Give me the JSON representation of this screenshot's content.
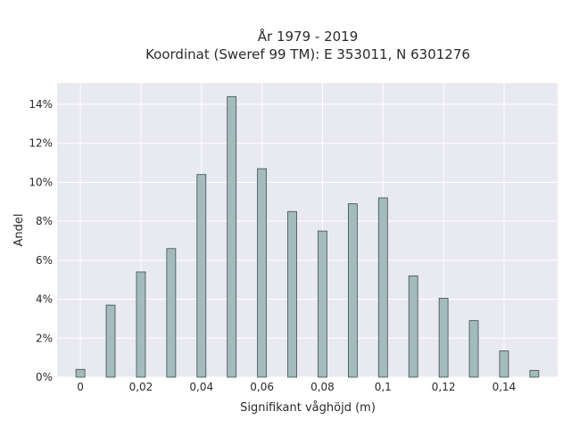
{
  "chart_data": {
    "type": "bar",
    "title": "År 1979 - 2019",
    "subtitle": "Koordinat (Sweref 99 TM): E 353011, N 6301276",
    "xlabel": "Signifikant våghöjd (m)",
    "ylabel": "Andel",
    "x": [
      0,
      0.01,
      0.02,
      0.03,
      0.04,
      0.05,
      0.06,
      0.07,
      0.08,
      0.09,
      0.1,
      0.11,
      0.12,
      0.13,
      0.14,
      0.15
    ],
    "values": [
      0.4,
      3.7,
      5.4,
      6.6,
      10.4,
      14.4,
      10.7,
      8.5,
      7.5,
      8.9,
      9.2,
      5.2,
      4.05,
      2.9,
      1.35,
      0.35
    ],
    "x_ticks": [
      0,
      0.02,
      0.04,
      0.06,
      0.08,
      0.1,
      0.12,
      0.14
    ],
    "x_tick_labels": [
      "0",
      "0,02",
      "0,04",
      "0,06",
      "0,08",
      "0,1",
      "0,12",
      "0,14"
    ],
    "y_ticks": [
      0,
      2,
      4,
      6,
      8,
      10,
      12,
      14
    ],
    "y_tick_labels": [
      "0%",
      "2%",
      "4%",
      "6%",
      "8%",
      "10%",
      "12%",
      "14%"
    ],
    "xlim": [
      -0.0077,
      0.1577
    ],
    "ylim": [
      0,
      15.1
    ],
    "grid": true,
    "bar_color": "#a3bbbc",
    "bar_edge_color": "#3d4f4f",
    "plot_background": "#e9e9f1",
    "grid_color": "#ffffff"
  }
}
